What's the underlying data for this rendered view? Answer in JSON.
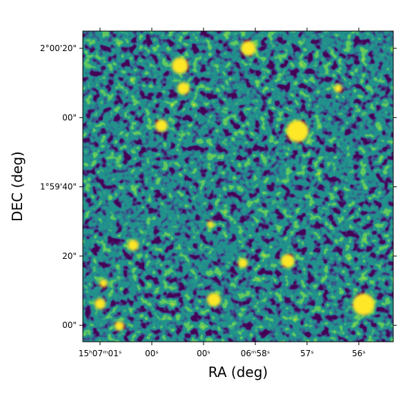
{
  "chart_data": {
    "type": "image",
    "xlabel": "RA (deg)",
    "ylabel": "DEC (deg)",
    "xtick_labels": [
      "15ʰ07ᵐ01ˢ",
      "00ˢ",
      "00ˢ",
      "06ᵐ58ˢ",
      "57ˢ",
      "56ˢ"
    ],
    "ytick_labels": [
      "2°00'20\"",
      "00\"",
      "1°59'40\"",
      "20\"",
      "00\""
    ],
    "colormap": "viridis"
  }
}
